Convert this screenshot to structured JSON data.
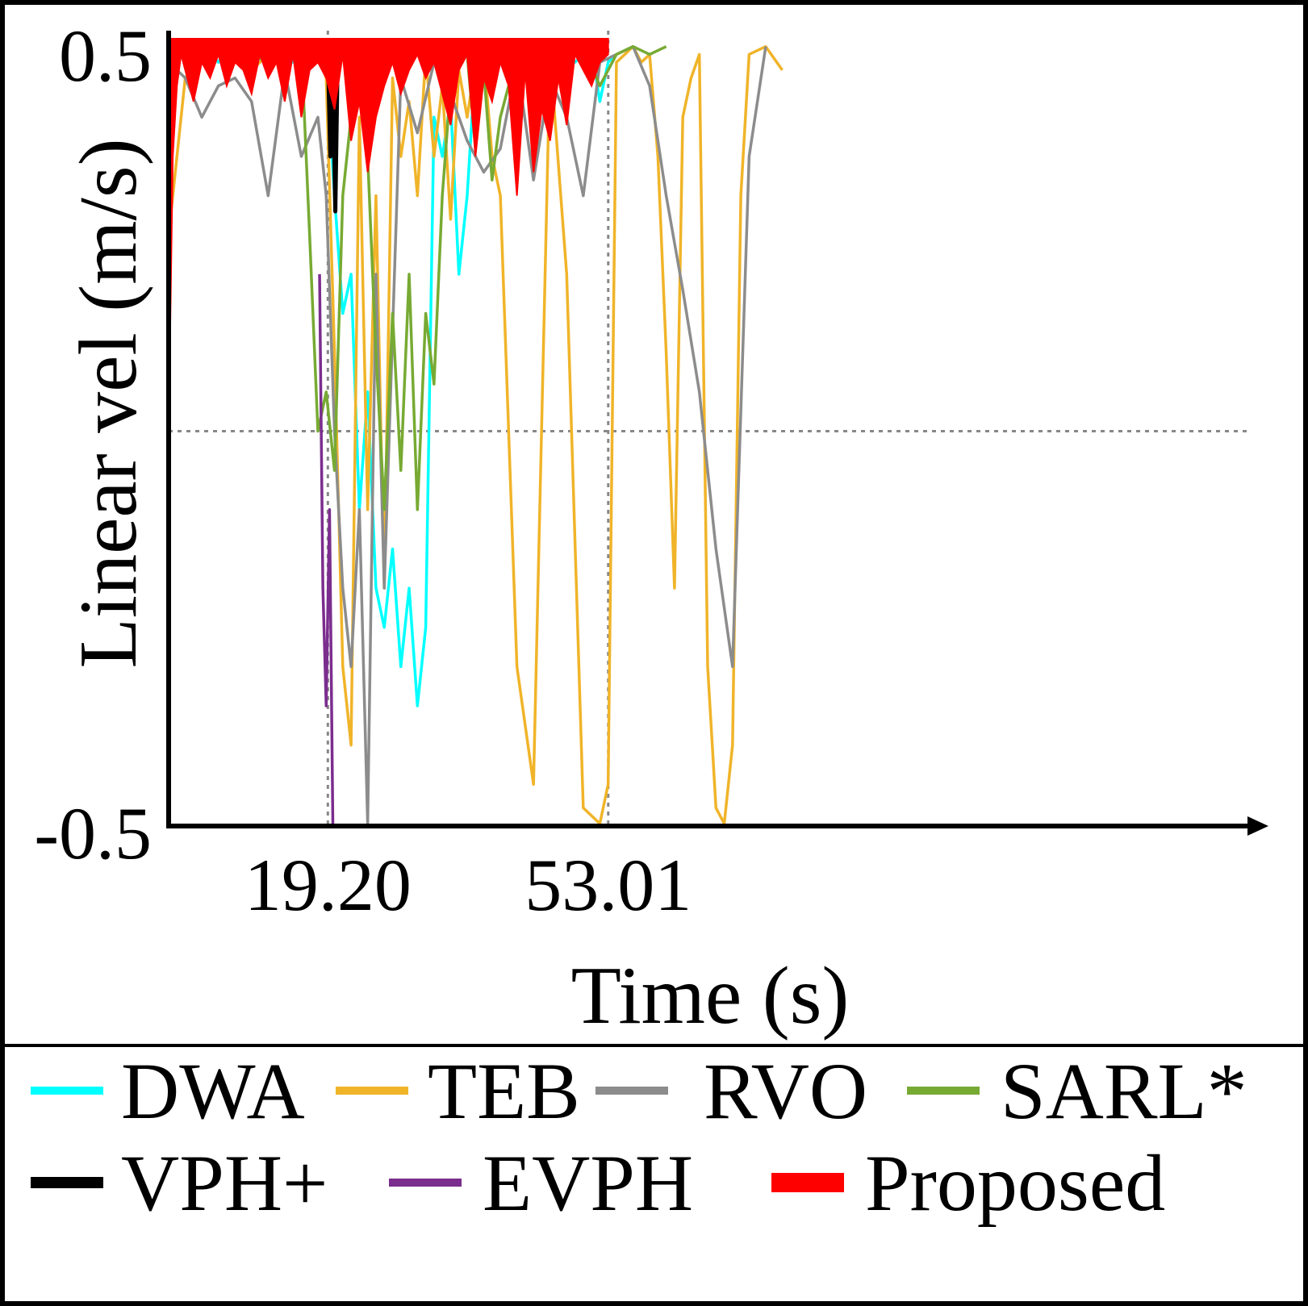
{
  "chart_data": {
    "type": "line",
    "xlabel": "Time (s)",
    "ylabel": "Linear vel (m/s)",
    "ylim": [
      -0.5,
      0.5
    ],
    "xlim": [
      0,
      130
    ],
    "y_ticks": [
      "0.5",
      "-0.5"
    ],
    "x_ticks": [
      {
        "value": 19.2,
        "label": "19.20"
      },
      {
        "value": 53.01,
        "label": "53.01"
      }
    ],
    "grid": "dotted reference lines at y=0 and at x=19.20, x=53.01",
    "legend_position": "bottom",
    "series": [
      {
        "name": "DWA",
        "color": "#00ffff",
        "kind": "line",
        "x": [
          0,
          1,
          2,
          3,
          4,
          5,
          6,
          7,
          8,
          9,
          10,
          11,
          12,
          13,
          14,
          15,
          16,
          17,
          18,
          19,
          20,
          21,
          22,
          23,
          24,
          25,
          26,
          27,
          28,
          29,
          30,
          31,
          32,
          33,
          34,
          35,
          36,
          37,
          38,
          39,
          40,
          41,
          42,
          43,
          44,
          45,
          46,
          47,
          48,
          49,
          50,
          51,
          52,
          53,
          54
        ],
        "y": [
          0.47,
          0.48,
          0.49,
          0.48,
          0.49,
          0.48,
          0.47,
          0.49,
          0.48,
          0.49,
          0.48,
          0.47,
          0.48,
          0.49,
          0.48,
          0.47,
          0.48,
          0.49,
          0.48,
          0.47,
          0.3,
          0.15,
          0.2,
          -0.1,
          0.05,
          -0.2,
          -0.25,
          -0.15,
          -0.3,
          -0.2,
          -0.35,
          -0.25,
          0.4,
          0.35,
          0.42,
          0.2,
          0.3,
          0.47,
          0.48,
          0.49,
          0.48,
          0.47,
          0.48,
          0.49,
          0.48,
          0.47,
          0.48,
          0.49,
          0.48,
          0.47,
          0.48,
          0.49,
          0.42,
          0.47,
          0.48
        ]
      },
      {
        "name": "TEB",
        "color": "#f0b429",
        "kind": "line",
        "x": [
          0,
          2,
          4,
          6,
          8,
          10,
          12,
          14,
          16,
          18,
          19,
          20,
          21,
          22,
          23,
          24,
          25,
          26,
          27,
          28,
          29,
          30,
          31,
          32,
          33,
          34,
          35,
          36,
          37,
          38,
          39,
          40,
          42,
          44,
          46,
          48,
          50,
          52,
          53,
          54,
          55,
          56,
          57,
          58,
          59,
          60,
          61,
          62,
          63,
          64,
          65,
          66,
          67,
          68,
          69,
          70,
          72,
          74
        ],
        "y": [
          0.25,
          0.45,
          0.48,
          0.49,
          0.47,
          0.46,
          0.48,
          0.49,
          0.47,
          0.48,
          0.45,
          0.1,
          -0.3,
          -0.4,
          0.4,
          -0.1,
          0.3,
          -0.2,
          0.45,
          0.35,
          0.42,
          0.3,
          0.48,
          0.35,
          0.44,
          0.27,
          0.46,
          0.4,
          0.47,
          0.48,
          0.35,
          0.3,
          -0.3,
          -0.45,
          0.48,
          0.2,
          -0.48,
          -0.5,
          -0.45,
          0.47,
          0.48,
          0.49,
          0.47,
          0.48,
          0.35,
          0.1,
          -0.2,
          0.4,
          0.45,
          0.48,
          -0.3,
          -0.48,
          -0.5,
          -0.4,
          0.3,
          0.48,
          0.49,
          0.46
        ]
      },
      {
        "name": "RVO",
        "color": "#8c8c8c",
        "kind": "line",
        "x": [
          0,
          2,
          4,
          6,
          8,
          10,
          12,
          14,
          16,
          18,
          19,
          20,
          21,
          22,
          23,
          24,
          25,
          26,
          28,
          30,
          32,
          34,
          36,
          38,
          40,
          42,
          44,
          46,
          48,
          50,
          52,
          54,
          56,
          58,
          60,
          62,
          64,
          66,
          68,
          70,
          72
        ],
        "y": [
          0.47,
          0.45,
          0.4,
          0.44,
          0.45,
          0.42,
          0.3,
          0.46,
          0.35,
          0.4,
          0.3,
          0.0,
          -0.2,
          -0.3,
          -0.1,
          -0.5,
          0.2,
          -0.2,
          0.45,
          0.38,
          0.47,
          0.43,
          0.37,
          0.33,
          0.36,
          0.47,
          0.32,
          0.45,
          0.4,
          0.3,
          0.47,
          0.48,
          0.49,
          0.44,
          0.3,
          0.18,
          0.05,
          -0.15,
          -0.3,
          0.35,
          0.49
        ]
      },
      {
        "name": "SARL*",
        "color": "#77aa33",
        "kind": "line",
        "x": [
          0,
          2,
          4,
          6,
          8,
          10,
          12,
          14,
          16,
          17,
          18,
          19,
          20,
          21,
          22,
          23,
          24,
          25,
          26,
          27,
          28,
          29,
          30,
          31,
          32,
          33,
          34,
          35,
          36,
          37,
          38,
          39,
          40,
          42,
          44,
          46,
          48,
          50,
          52,
          54,
          56,
          58,
          60
        ],
        "y": [
          0.49,
          0.48,
          0.49,
          0.48,
          0.49,
          0.48,
          0.47,
          0.48,
          0.49,
          0.25,
          0.0,
          0.05,
          -0.05,
          0.3,
          0.4,
          0.45,
          0.35,
          0.1,
          -0.1,
          0.15,
          -0.05,
          0.2,
          -0.1,
          0.15,
          0.06,
          0.3,
          0.44,
          0.47,
          0.48,
          0.36,
          0.46,
          0.32,
          0.4,
          0.48,
          0.49,
          0.47,
          0.48,
          0.49,
          0.44,
          0.48,
          0.49,
          0.48,
          0.49
        ]
      },
      {
        "name": "VPH+",
        "color": "#000000",
        "kind": "line",
        "x": [
          19.2,
          19.5,
          19.8,
          20.1,
          20.4
        ],
        "y": [
          0.48,
          0.35,
          0.45,
          0.28,
          0.49
        ]
      },
      {
        "name": "EVPH",
        "color": "#7b2d8e",
        "kind": "line",
        "x": [
          18.2,
          18.6,
          19.0,
          19.4,
          19.8
        ],
        "y": [
          0.2,
          -0.2,
          -0.35,
          -0.1,
          -0.5
        ]
      },
      {
        "name": "Proposed",
        "color": "#ff0000",
        "kind": "area",
        "x": [
          0,
          0.5,
          1,
          1.5,
          2,
          3,
          4,
          5,
          6,
          7,
          8,
          9,
          10,
          11,
          12,
          13,
          14,
          15,
          16,
          17,
          18,
          19,
          20,
          21,
          22,
          23,
          24,
          25,
          26,
          27,
          28,
          29,
          30,
          31,
          32,
          33,
          34,
          35,
          36,
          37,
          38,
          39,
          40,
          41,
          42,
          43,
          44,
          45,
          46,
          47,
          48,
          49,
          50,
          51,
          52,
          53
        ],
        "y": [
          0.0,
          0.35,
          0.44,
          0.48,
          0.46,
          0.42,
          0.47,
          0.45,
          0.48,
          0.44,
          0.47,
          0.46,
          0.43,
          0.48,
          0.45,
          0.47,
          0.42,
          0.48,
          0.4,
          0.46,
          0.47,
          0.45,
          0.41,
          0.48,
          0.37,
          0.42,
          0.33,
          0.4,
          0.44,
          0.47,
          0.43,
          0.46,
          0.48,
          0.45,
          0.47,
          0.43,
          0.39,
          0.46,
          0.48,
          0.35,
          0.45,
          0.42,
          0.47,
          0.44,
          0.3,
          0.46,
          0.33,
          0.41,
          0.37,
          0.45,
          0.39,
          0.48,
          0.46,
          0.44,
          0.47,
          0.48
        ]
      }
    ]
  }
}
